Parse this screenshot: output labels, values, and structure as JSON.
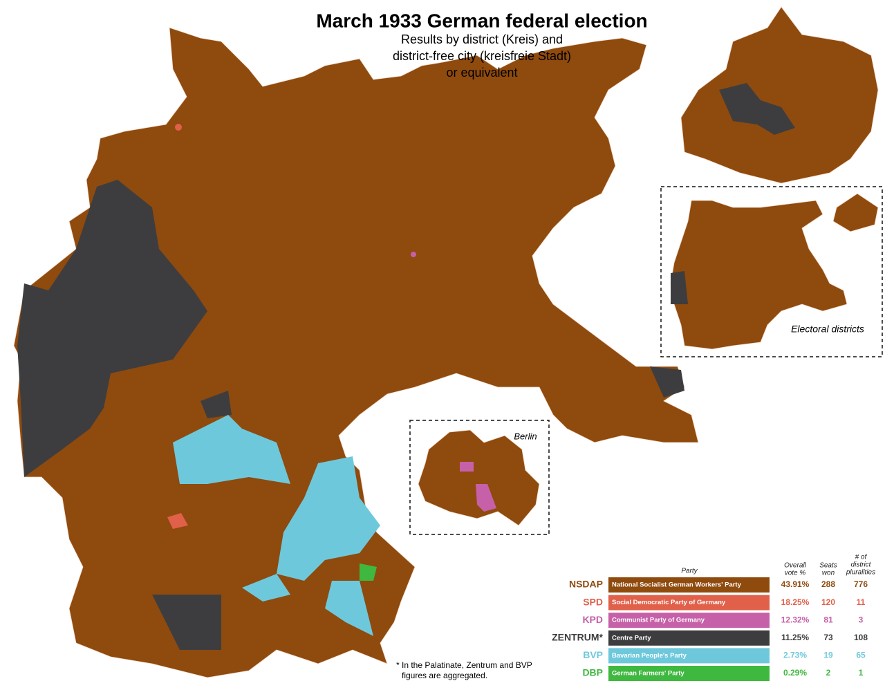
{
  "title": "March 1933 German federal election",
  "subtitle": [
    "Results by district (Kreis) and",
    "district-free city (kreisfreie Stadt)",
    "or equivalent"
  ],
  "insets": {
    "electoral": "Electoral districts",
    "berlin": "Berlin"
  },
  "legend": {
    "party_header": "Party",
    "vote_header": [
      "Overall",
      "vote %"
    ],
    "seats_header": [
      "Seats",
      "won"
    ],
    "plurality_header": [
      "# of",
      "district",
      "pluralities"
    ],
    "rows": [
      {
        "abbr": "NSDAP",
        "name": "National Socialist German Workers' Party",
        "vote": "43.91%",
        "seats": 288,
        "pluralities": 776,
        "color": "#8f4a0e"
      },
      {
        "abbr": "SPD",
        "name": "Social Democratic Party of Germany",
        "vote": "18.25%",
        "seats": 120,
        "pluralities": 11,
        "color": "#e0604a"
      },
      {
        "abbr": "KPD",
        "name": "Communist Party of Germany",
        "vote": "12.32%",
        "seats": 81,
        "pluralities": 3,
        "color": "#c660a8"
      },
      {
        "abbr": "ZENTRUM*",
        "name": "Centre Party",
        "vote": "11.25%",
        "seats": 73,
        "pluralities": 108,
        "color": "#3d3d3f"
      },
      {
        "abbr": "BVP",
        "name": "Bavarian People's Party",
        "vote": "2.73%",
        "seats": 19,
        "pluralities": 65,
        "color": "#6ec8dc"
      },
      {
        "abbr": "DBP",
        "name": "German Farmers' Party",
        "vote": "0.29%",
        "seats": 2,
        "pluralities": 1,
        "color": "#3fb83f"
      }
    ]
  },
  "footnote": [
    "* In the Palatinate, Zentrum and BVP",
    "figures are aggregated."
  ]
}
